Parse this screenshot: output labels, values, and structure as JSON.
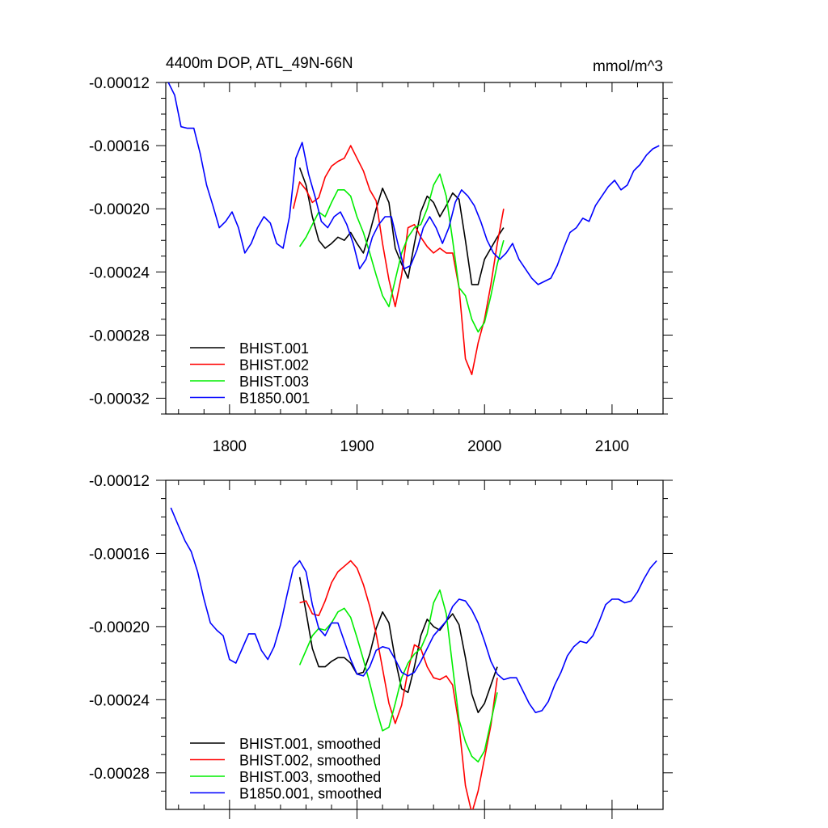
{
  "chart_data": [
    {
      "type": "line",
      "title": "4400m DOP, ATL_49N-66N",
      "units": "mmol/m^3",
      "xlim": [
        1750,
        2140
      ],
      "ylim": [
        -0.00033,
        -0.00012
      ],
      "x_ticks": [
        1800,
        1900,
        2000,
        2100
      ],
      "y_ticks": [
        -0.00012,
        -0.00016,
        -0.0002,
        -0.00024,
        -0.00028,
        -0.00032
      ],
      "x_tick_labels": [
        "1800",
        "1900",
        "2000",
        "2100"
      ],
      "y_tick_labels": [
        "-0.00012",
        "-0.00016",
        "-0.00020",
        "-0.00024",
        "-0.00028",
        "-0.00032"
      ],
      "grid": false,
      "legend_position": "bottom-left",
      "series": [
        {
          "name": "BHIST.001",
          "color": "#000000",
          "x": [
            1855,
            1860,
            1865,
            1870,
            1875,
            1880,
            1885,
            1890,
            1895,
            1900,
            1905,
            1910,
            1915,
            1920,
            1925,
            1930,
            1935,
            1940,
            1945,
            1950,
            1955,
            1960,
            1965,
            1970,
            1975,
            1980,
            1985,
            1990,
            1995,
            2000,
            2005,
            2010,
            2015
          ],
          "y": [
            -0.000174,
            -0.000185,
            -0.000205,
            -0.00022,
            -0.000225,
            -0.000222,
            -0.000218,
            -0.00022,
            -0.000215,
            -0.000222,
            -0.000228,
            -0.000215,
            -0.0002,
            -0.000187,
            -0.000196,
            -0.000225,
            -0.000235,
            -0.000244,
            -0.000222,
            -0.000202,
            -0.000192,
            -0.000196,
            -0.000205,
            -0.000198,
            -0.00019,
            -0.000194,
            -0.00022,
            -0.000248,
            -0.000248,
            -0.000232,
            -0.000225,
            -0.000218,
            -0.000212
          ]
        },
        {
          "name": "BHIST.002",
          "color": "#ff0000",
          "x": [
            1850,
            1855,
            1860,
            1865,
            1870,
            1875,
            1880,
            1885,
            1890,
            1895,
            1900,
            1905,
            1910,
            1915,
            1920,
            1925,
            1930,
            1935,
            1940,
            1945,
            1950,
            1955,
            1960,
            1965,
            1970,
            1975,
            1980,
            1985,
            1990,
            1995,
            2000,
            2005,
            2010,
            2015
          ],
          "y": [
            -0.0002,
            -0.000183,
            -0.000188,
            -0.000196,
            -0.000193,
            -0.00018,
            -0.000173,
            -0.00017,
            -0.000168,
            -0.00016,
            -0.000168,
            -0.000176,
            -0.000188,
            -0.000195,
            -0.000222,
            -0.000245,
            -0.000262,
            -0.000242,
            -0.000212,
            -0.00021,
            -0.000218,
            -0.000224,
            -0.000228,
            -0.000225,
            -0.000228,
            -0.000228,
            -0.00025,
            -0.000295,
            -0.000305,
            -0.000285,
            -0.00027,
            -0.000248,
            -0.000222,
            -0.0002
          ]
        },
        {
          "name": "BHIST.003",
          "color": "#00ee00",
          "x": [
            1855,
            1860,
            1865,
            1870,
            1875,
            1880,
            1885,
            1890,
            1895,
            1900,
            1905,
            1910,
            1915,
            1920,
            1925,
            1930,
            1935,
            1940,
            1945,
            1950,
            1955,
            1960,
            1965,
            1970,
            1975,
            1980,
            1985,
            1990,
            1995,
            2000,
            2005,
            2010,
            2015
          ],
          "y": [
            -0.000224,
            -0.000218,
            -0.00021,
            -0.000202,
            -0.000205,
            -0.000196,
            -0.000188,
            -0.000188,
            -0.000192,
            -0.000205,
            -0.000215,
            -0.000228,
            -0.000242,
            -0.000255,
            -0.000262,
            -0.000245,
            -0.000228,
            -0.000218,
            -0.000212,
            -0.00021,
            -0.0002,
            -0.000185,
            -0.000178,
            -0.000192,
            -0.00022,
            -0.00025,
            -0.000255,
            -0.00027,
            -0.000278,
            -0.000272,
            -0.000255,
            -0.000235,
            -0.00022
          ]
        },
        {
          "name": "B1850.001",
          "color": "#0000ff",
          "x": [
            1752,
            1757,
            1762,
            1767,
            1772,
            1777,
            1782,
            1787,
            1792,
            1797,
            1802,
            1807,
            1812,
            1817,
            1822,
            1827,
            1832,
            1837,
            1842,
            1847,
            1852,
            1857,
            1862,
            1867,
            1872,
            1877,
            1882,
            1887,
            1892,
            1897,
            1902,
            1907,
            1912,
            1917,
            1922,
            1927,
            1932,
            1937,
            1942,
            1947,
            1952,
            1957,
            1962,
            1967,
            1972,
            1977,
            1982,
            1987,
            1992,
            1997,
            2002,
            2007,
            2012,
            2017,
            2022,
            2027,
            2032,
            2037,
            2042,
            2047,
            2052,
            2057,
            2062,
            2067,
            2072,
            2077,
            2082,
            2087,
            2092,
            2097,
            2102,
            2107,
            2112,
            2117,
            2122,
            2127,
            2132,
            2137
          ],
          "y": [
            -0.00012,
            -0.000128,
            -0.000148,
            -0.000149,
            -0.000149,
            -0.000165,
            -0.000185,
            -0.000198,
            -0.000212,
            -0.000208,
            -0.000202,
            -0.000212,
            -0.000228,
            -0.000222,
            -0.000212,
            -0.000205,
            -0.000209,
            -0.000222,
            -0.000225,
            -0.000205,
            -0.000168,
            -0.000158,
            -0.000178,
            -0.000192,
            -0.000208,
            -0.000212,
            -0.000205,
            -0.000202,
            -0.00021,
            -0.000222,
            -0.000238,
            -0.000232,
            -0.000218,
            -0.00021,
            -0.000205,
            -0.000205,
            -0.000222,
            -0.000238,
            -0.000236,
            -0.000226,
            -0.000212,
            -0.000205,
            -0.000212,
            -0.000222,
            -0.000212,
            -0.000196,
            -0.000188,
            -0.000192,
            -0.000198,
            -0.000208,
            -0.00022,
            -0.000228,
            -0.000232,
            -0.000228,
            -0.000222,
            -0.000232,
            -0.000238,
            -0.000244,
            -0.000248,
            -0.000246,
            -0.000244,
            -0.000236,
            -0.000225,
            -0.000215,
            -0.000212,
            -0.000206,
            -0.000208,
            -0.000198,
            -0.000192,
            -0.000186,
            -0.000182,
            -0.000188,
            -0.000185,
            -0.000176,
            -0.000172,
            -0.000166,
            -0.000162,
            -0.00016
          ]
        }
      ]
    },
    {
      "type": "line",
      "xlim": [
        1750,
        2140
      ],
      "ylim": [
        -0.0003,
        -0.00012
      ],
      "x_ticks": [
        1800,
        1900,
        2000,
        2100
      ],
      "y_ticks": [
        -0.00012,
        -0.00016,
        -0.0002,
        -0.00024,
        -0.00028
      ],
      "y_tick_labels": [
        "-0.00012",
        "-0.00016",
        "-0.00020",
        "-0.00024",
        "-0.00028"
      ],
      "grid": false,
      "legend_position": "bottom-left",
      "series": [
        {
          "name": "BHIST.001, smoothed",
          "color": "#000000",
          "x": [
            1855,
            1860,
            1865,
            1870,
            1875,
            1880,
            1885,
            1890,
            1895,
            1900,
            1905,
            1910,
            1915,
            1920,
            1925,
            1930,
            1935,
            1940,
            1945,
            1950,
            1955,
            1960,
            1965,
            1970,
            1975,
            1980,
            1985,
            1990,
            1995,
            2000,
            2005,
            2010
          ],
          "y": [
            -0.000173,
            -0.000192,
            -0.000212,
            -0.000222,
            -0.000222,
            -0.000219,
            -0.000217,
            -0.000217,
            -0.00022,
            -0.000226,
            -0.000225,
            -0.000215,
            -0.000201,
            -0.000192,
            -0.000198,
            -0.000218,
            -0.000234,
            -0.000236,
            -0.000222,
            -0.000205,
            -0.000196,
            -0.0002,
            -0.000202,
            -0.000197,
            -0.000193,
            -0.000199,
            -0.000217,
            -0.000237,
            -0.000247,
            -0.000242,
            -0.000232,
            -0.000222
          ]
        },
        {
          "name": "BHIST.002, smoothed",
          "color": "#ff0000",
          "x": [
            1855,
            1860,
            1865,
            1870,
            1875,
            1880,
            1885,
            1890,
            1895,
            1900,
            1905,
            1910,
            1915,
            1920,
            1925,
            1930,
            1935,
            1940,
            1945,
            1950,
            1955,
            1960,
            1965,
            1970,
            1975,
            1980,
            1985,
            1990,
            1995,
            2000,
            2005,
            2010
          ],
          "y": [
            -0.000187,
            -0.000186,
            -0.000193,
            -0.000194,
            -0.000186,
            -0.000176,
            -0.00017,
            -0.000167,
            -0.000164,
            -0.000168,
            -0.000177,
            -0.000189,
            -0.000204,
            -0.000223,
            -0.000242,
            -0.000253,
            -0.000243,
            -0.000224,
            -0.00021,
            -0.000212,
            -0.000222,
            -0.000228,
            -0.000229,
            -0.000227,
            -0.000232,
            -0.000254,
            -0.000287,
            -0.000302,
            -0.00029,
            -0.000272,
            -0.000254,
            -0.000228
          ]
        },
        {
          "name": "BHIST.003, smoothed",
          "color": "#00ee00",
          "x": [
            1855,
            1860,
            1865,
            1870,
            1875,
            1880,
            1885,
            1890,
            1895,
            1900,
            1905,
            1910,
            1915,
            1920,
            1925,
            1930,
            1935,
            1940,
            1945,
            1950,
            1955,
            1960,
            1965,
            1970,
            1975,
            1980,
            1985,
            1990,
            1995,
            2000,
            2005,
            2010
          ],
          "y": [
            -0.000221,
            -0.000213,
            -0.000205,
            -0.000201,
            -0.000202,
            -0.000198,
            -0.000192,
            -0.00019,
            -0.000195,
            -0.000206,
            -0.000218,
            -0.000231,
            -0.000245,
            -0.000257,
            -0.000255,
            -0.000242,
            -0.000228,
            -0.00022,
            -0.000215,
            -0.000212,
            -0.000204,
            -0.000187,
            -0.00018,
            -0.000193,
            -0.000222,
            -0.000251,
            -0.000263,
            -0.000271,
            -0.000274,
            -0.000268,
            -0.000252,
            -0.000236
          ]
        },
        {
          "name": "B1850.001, smoothed",
          "color": "#0000ff",
          "x": [
            1754,
            1760,
            1765,
            1770,
            1775,
            1780,
            1785,
            1790,
            1795,
            1800,
            1805,
            1810,
            1815,
            1820,
            1825,
            1830,
            1835,
            1840,
            1845,
            1850,
            1855,
            1860,
            1865,
            1870,
            1875,
            1880,
            1885,
            1890,
            1895,
            1900,
            1905,
            1910,
            1915,
            1920,
            1925,
            1930,
            1935,
            1940,
            1945,
            1950,
            1955,
            1960,
            1965,
            1970,
            1975,
            1980,
            1985,
            1990,
            1995,
            2000,
            2005,
            2010,
            2015,
            2020,
            2025,
            2030,
            2035,
            2040,
            2045,
            2050,
            2055,
            2060,
            2065,
            2070,
            2075,
            2080,
            2085,
            2090,
            2095,
            2100,
            2105,
            2110,
            2115,
            2120,
            2125,
            2130,
            2135
          ],
          "y": [
            -0.000135,
            -0.000145,
            -0.000153,
            -0.000159,
            -0.00017,
            -0.000185,
            -0.000198,
            -0.000202,
            -0.000205,
            -0.000218,
            -0.00022,
            -0.000212,
            -0.000204,
            -0.000204,
            -0.000213,
            -0.000218,
            -0.000211,
            -0.000199,
            -0.000183,
            -0.000168,
            -0.000164,
            -0.00017,
            -0.000188,
            -0.000201,
            -0.000205,
            -0.000198,
            -0.000198,
            -0.000208,
            -0.000218,
            -0.000226,
            -0.000227,
            -0.000222,
            -0.000213,
            -0.000211,
            -0.000212,
            -0.000218,
            -0.000225,
            -0.000227,
            -0.000225,
            -0.000219,
            -0.000212,
            -0.000205,
            -0.000201,
            -0.000197,
            -0.000189,
            -0.000185,
            -0.000186,
            -0.000191,
            -0.000198,
            -0.000208,
            -0.000219,
            -0.000226,
            -0.000229,
            -0.000228,
            -0.000228,
            -0.000235,
            -0.000242,
            -0.000247,
            -0.000246,
            -0.000241,
            -0.000232,
            -0.000225,
            -0.000216,
            -0.000211,
            -0.000208,
            -0.000209,
            -0.000205,
            -0.000197,
            -0.000188,
            -0.000185,
            -0.000185,
            -0.000187,
            -0.000186,
            -0.000181,
            -0.000174,
            -0.000168,
            -0.000164
          ]
        }
      ]
    }
  ]
}
